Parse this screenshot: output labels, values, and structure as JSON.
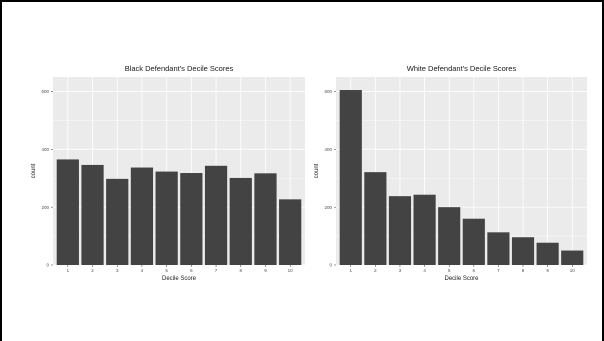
{
  "chart_data": [
    {
      "type": "bar",
      "title": "Black Defendant's Decile Scores",
      "xlabel": "Decile Score",
      "ylabel": "count",
      "categories": [
        "1",
        "2",
        "3",
        "4",
        "5",
        "6",
        "7",
        "8",
        "9",
        "10"
      ],
      "values": [
        365,
        346,
        298,
        337,
        323,
        318,
        343,
        301,
        317,
        227
      ],
      "ylim": [
        0,
        650
      ],
      "yticks": [
        0,
        200,
        400,
        600
      ],
      "grid": true,
      "colors": {
        "bar": "#434343",
        "panel": "#ebebeb",
        "grid": "#ffffff"
      }
    },
    {
      "type": "bar",
      "title": "White Defendant's Decile Scores",
      "xlabel": "Decile Score",
      "ylabel": "count",
      "categories": [
        "1",
        "2",
        "3",
        "4",
        "5",
        "6",
        "7",
        "8",
        "9",
        "10"
      ],
      "values": [
        605,
        321,
        238,
        243,
        200,
        160,
        113,
        96,
        77,
        50
      ],
      "ylim": [
        0,
        650
      ],
      "yticks": [
        0,
        200,
        400,
        600
      ],
      "grid": true,
      "colors": {
        "bar": "#434343",
        "panel": "#ebebeb",
        "grid": "#ffffff"
      }
    }
  ]
}
